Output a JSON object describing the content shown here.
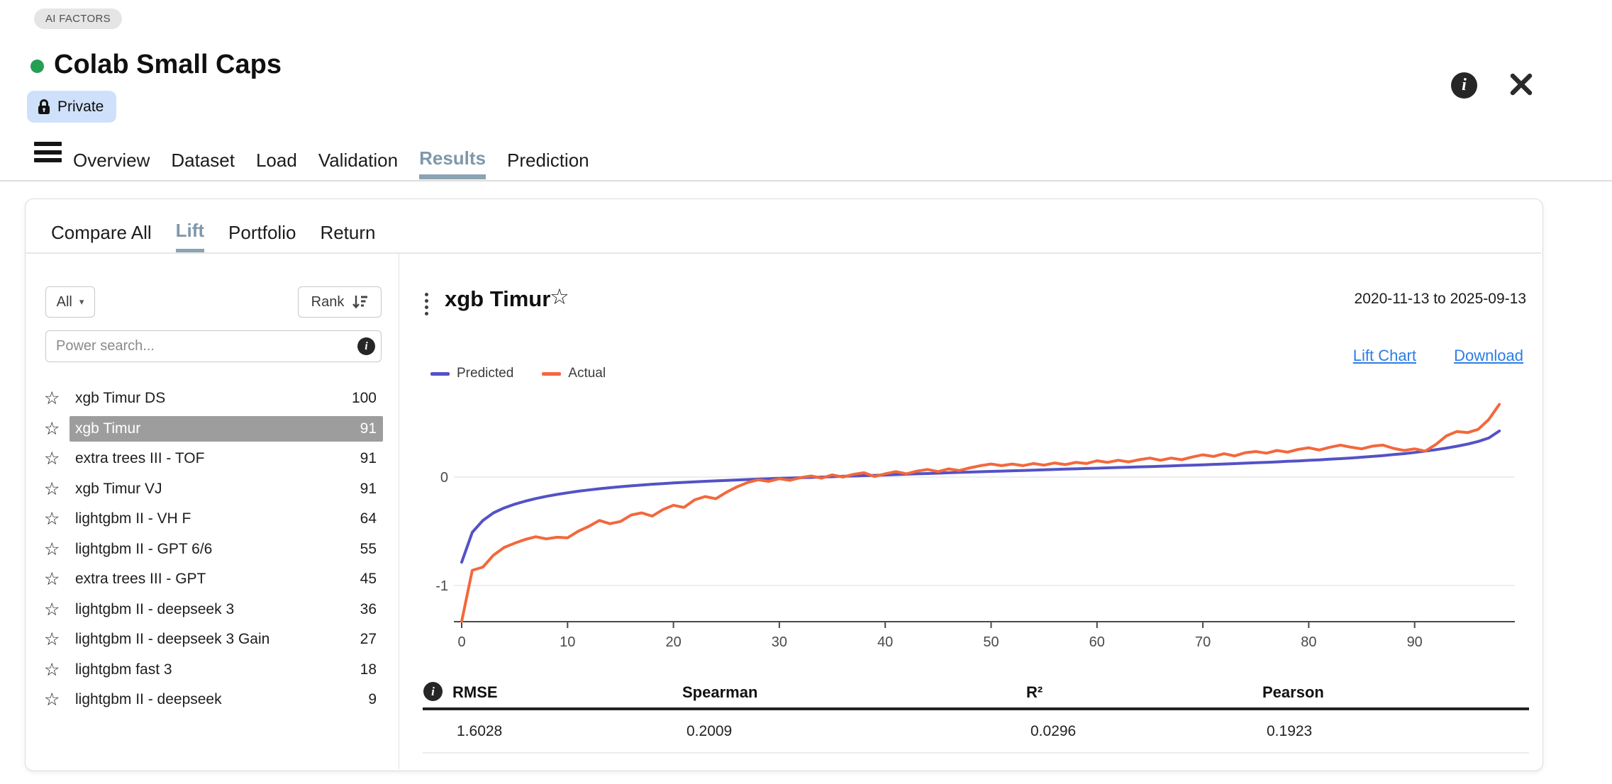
{
  "header": {
    "badge": "AI FACTORS",
    "title": "Colab Small Caps",
    "status_color": "#269e53",
    "privacy_label": "Private",
    "tabs": [
      "Overview",
      "Dataset",
      "Load",
      "Validation",
      "Results",
      "Prediction"
    ],
    "active_tab": "Results",
    "active_color": "#7f98a9"
  },
  "subtabs": {
    "items": [
      "Compare All",
      "Lift",
      "Portfolio",
      "Return"
    ],
    "active": "Lift"
  },
  "left_panel": {
    "filter_label": "All",
    "sort_label": "Rank",
    "search_placeholder": "Power search...",
    "selected_model": "xgb Timur",
    "models": [
      {
        "name": "xgb Timur DS",
        "score": "100"
      },
      {
        "name": "xgb Timur",
        "score": "91"
      },
      {
        "name": "extra trees III - TOF",
        "score": "91"
      },
      {
        "name": "xgb Timur VJ",
        "score": "91"
      },
      {
        "name": "lightgbm II - VH F",
        "score": "64"
      },
      {
        "name": "lightgbm II - GPT 6/6",
        "score": "55"
      },
      {
        "name": "extra trees III - GPT",
        "score": "45"
      },
      {
        "name": "lightgbm II - deepseek 3",
        "score": "36"
      },
      {
        "name": "lightgbm II - deepseek 3 Gain",
        "score": "27"
      },
      {
        "name": "lightgbm fast 3",
        "score": "18"
      },
      {
        "name": "lightgbm II - deepseek",
        "score": "9"
      }
    ]
  },
  "detail": {
    "title": "xgb Timur",
    "date_range": "2020-11-13 to 2025-09-13",
    "lift_chart_link": "Lift Chart",
    "download_link": "Download"
  },
  "metrics": {
    "columns": [
      "RMSE",
      "Spearman",
      "R²",
      "Pearson"
    ],
    "values": [
      "1.6028",
      "0.2009",
      "0.0296",
      "0.1923"
    ]
  },
  "chart_data": {
    "type": "line",
    "title": "Lift chart: predicted vs actual by percentile rank",
    "xlabel": "",
    "ylabel": "",
    "xlim": [
      0,
      99
    ],
    "ylim": [
      -1.33,
      0.82
    ],
    "xticks": [
      0,
      10,
      20,
      30,
      40,
      50,
      60,
      70,
      80,
      90
    ],
    "yticks": [
      0,
      -1
    ],
    "grid": "horizontal-only",
    "legend_position": "top-left",
    "x": [
      0,
      1,
      2,
      3,
      4,
      5,
      6,
      7,
      8,
      9,
      10,
      11,
      12,
      13,
      14,
      15,
      16,
      17,
      18,
      19,
      20,
      21,
      22,
      23,
      24,
      25,
      26,
      27,
      28,
      29,
      30,
      31,
      32,
      33,
      34,
      35,
      36,
      37,
      38,
      39,
      40,
      41,
      42,
      43,
      44,
      45,
      46,
      47,
      48,
      49,
      50,
      51,
      52,
      53,
      54,
      55,
      56,
      57,
      58,
      59,
      60,
      61,
      62,
      63,
      64,
      65,
      66,
      67,
      68,
      69,
      70,
      71,
      72,
      73,
      74,
      75,
      76,
      77,
      78,
      79,
      80,
      81,
      82,
      83,
      84,
      85,
      86,
      87,
      88,
      89,
      90,
      91,
      92,
      93,
      94,
      95,
      96,
      97,
      98
    ],
    "series": [
      {
        "name": "Predicted",
        "color": "#5452c6",
        "values": [
          -0.785,
          -0.51,
          -0.4,
          -0.33,
          -0.285,
          -0.25,
          -0.222,
          -0.198,
          -0.178,
          -0.16,
          -0.145,
          -0.131,
          -0.119,
          -0.108,
          -0.098,
          -0.089,
          -0.081,
          -0.073,
          -0.066,
          -0.06,
          -0.054,
          -0.049,
          -0.044,
          -0.039,
          -0.035,
          -0.031,
          -0.027,
          -0.023,
          -0.019,
          -0.016,
          -0.012,
          -0.009,
          -0.006,
          -0.003,
          0.0,
          0.003,
          0.007,
          0.01,
          0.013,
          0.016,
          0.019,
          0.023,
          0.026,
          0.03,
          0.033,
          0.036,
          0.04,
          0.043,
          0.046,
          0.049,
          0.052,
          0.055,
          0.058,
          0.061,
          0.064,
          0.067,
          0.07,
          0.073,
          0.076,
          0.079,
          0.082,
          0.085,
          0.088,
          0.091,
          0.094,
          0.097,
          0.1,
          0.103,
          0.107,
          0.11,
          0.113,
          0.117,
          0.12,
          0.124,
          0.128,
          0.132,
          0.136,
          0.14,
          0.145,
          0.149,
          0.154,
          0.159,
          0.165,
          0.17,
          0.176,
          0.183,
          0.19,
          0.198,
          0.207,
          0.216,
          0.227,
          0.239,
          0.252,
          0.267,
          0.284,
          0.304,
          0.328,
          0.36,
          0.425
        ]
      },
      {
        "name": "Actual",
        "color": "#f2683c",
        "values": [
          -1.33,
          -0.86,
          -0.83,
          -0.72,
          -0.65,
          -0.61,
          -0.575,
          -0.55,
          -0.57,
          -0.555,
          -0.56,
          -0.5,
          -0.455,
          -0.4,
          -0.43,
          -0.41,
          -0.35,
          -0.33,
          -0.36,
          -0.3,
          -0.26,
          -0.28,
          -0.21,
          -0.18,
          -0.2,
          -0.14,
          -0.09,
          -0.05,
          -0.025,
          -0.04,
          -0.015,
          -0.03,
          -0.005,
          0.01,
          -0.01,
          0.02,
          0.0,
          0.025,
          0.04,
          0.005,
          0.03,
          0.05,
          0.03,
          0.055,
          0.07,
          0.05,
          0.075,
          0.06,
          0.085,
          0.105,
          0.12,
          0.105,
          0.12,
          0.105,
          0.125,
          0.11,
          0.13,
          0.115,
          0.135,
          0.125,
          0.15,
          0.135,
          0.155,
          0.14,
          0.16,
          0.175,
          0.155,
          0.175,
          0.16,
          0.185,
          0.205,
          0.19,
          0.215,
          0.195,
          0.225,
          0.235,
          0.22,
          0.245,
          0.23,
          0.255,
          0.27,
          0.25,
          0.275,
          0.295,
          0.275,
          0.26,
          0.285,
          0.295,
          0.265,
          0.245,
          0.26,
          0.24,
          0.3,
          0.38,
          0.42,
          0.41,
          0.44,
          0.53,
          0.67
        ]
      }
    ]
  }
}
